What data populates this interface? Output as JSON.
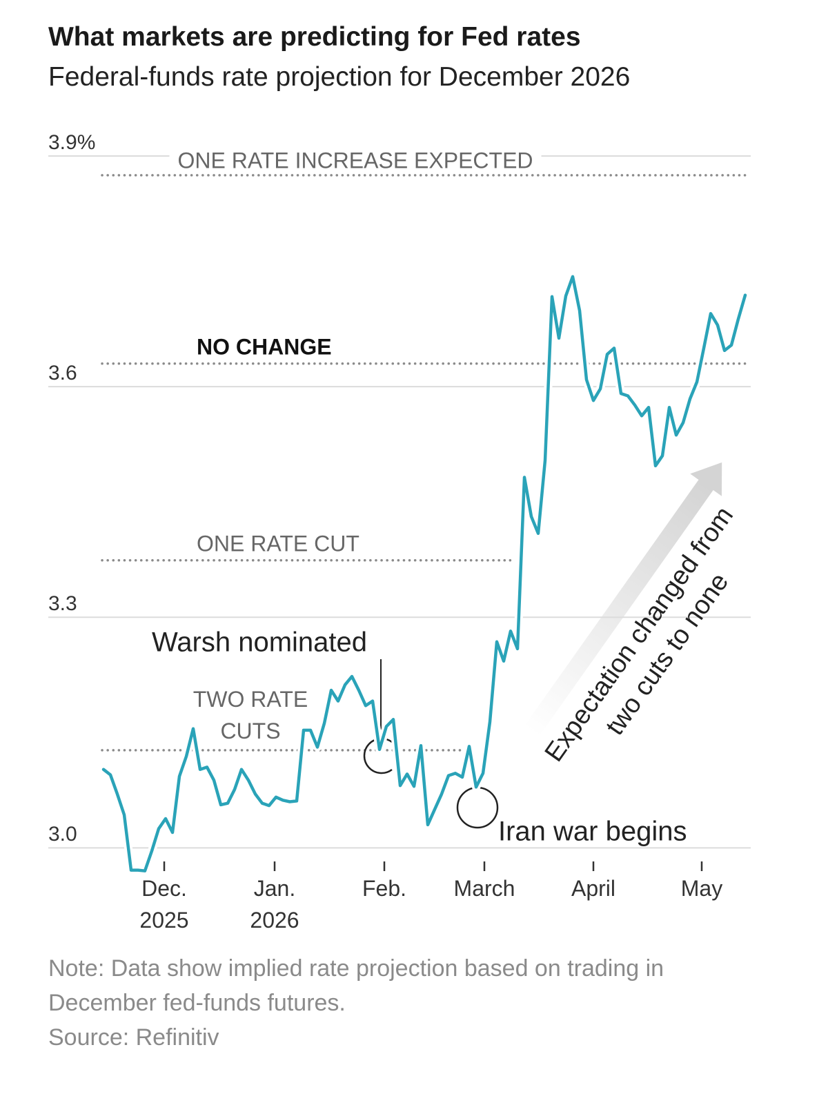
{
  "chart_data": {
    "type": "line",
    "title": "What markets are predicting for Fed rates",
    "subtitle": "Federal-funds rate projection for December 2026",
    "values": [
      3.102,
      3.095,
      3.07,
      3.043,
      2.971,
      2.971,
      2.97,
      2.996,
      3.025,
      3.038,
      3.02,
      3.093,
      3.119,
      3.155,
      3.102,
      3.105,
      3.088,
      3.056,
      3.058,
      3.076,
      3.102,
      3.088,
      3.07,
      3.058,
      3.055,
      3.066,
      3.062,
      3.06,
      3.061,
      3.153,
      3.153,
      3.131,
      3.162,
      3.205,
      3.191,
      3.212,
      3.223,
      3.205,
      3.185,
      3.191,
      3.128,
      3.158,
      3.167,
      3.081,
      3.096,
      3.08,
      3.133,
      3.03,
      3.05,
      3.07,
      3.094,
      3.097,
      3.092,
      3.132,
      3.079,
      3.097,
      3.164,
      3.268,
      3.243,
      3.282,
      3.259,
      3.482,
      3.431,
      3.409,
      3.504,
      3.717,
      3.663,
      3.718,
      3.743,
      3.699,
      3.609,
      3.582,
      3.597,
      3.642,
      3.65,
      3.591,
      3.588,
      3.576,
      3.562,
      3.573,
      3.497,
      3.51,
      3.573,
      3.537,
      3.553,
      3.584,
      3.606,
      3.65,
      3.695,
      3.68,
      3.647,
      3.654,
      3.688,
      3.719
    ],
    "color": "#2aa3b8",
    "xlim": [
      0,
      93
    ],
    "xticks": [
      {
        "value": 8.8,
        "label": "Dec. 2025"
      },
      {
        "value": 24.8,
        "label": "Jan. 2026"
      },
      {
        "value": 40.7,
        "label": "Feb."
      },
      {
        "value": 55.2,
        "label": "March"
      },
      {
        "value": 71,
        "label": "April"
      },
      {
        "value": 86.7,
        "label": "May"
      }
    ],
    "ylim": [
      2.95,
      3.9
    ],
    "yticks": [
      {
        "value": 3,
        "label": "3.0"
      },
      3.3,
      3.6,
      {
        "value": 3.9,
        "label": "3.9%"
      }
    ],
    "grid": true,
    "reference_lines": [
      {
        "value": 3.875,
        "label": "ONE RATE INCREASE EXPECTED"
      },
      {
        "value": 3.63,
        "label": "NO CHANGE"
      },
      {
        "value": 3.374,
        "label": "ONE RATE CUT"
      },
      {
        "value": 3.127,
        "label": "TWO RATE CUTS"
      }
    ],
    "annotations": [
      {
        "text": "Warsh nominated"
      },
      {
        "text": "Iran war begins"
      },
      {
        "lines": [
          "Expectation changed from",
          "two cuts to none"
        ]
      }
    ],
    "note": "Note: Data show implied rate projection based on trading in December fed-funds futures.",
    "source": "Source: Refinitiv"
  }
}
